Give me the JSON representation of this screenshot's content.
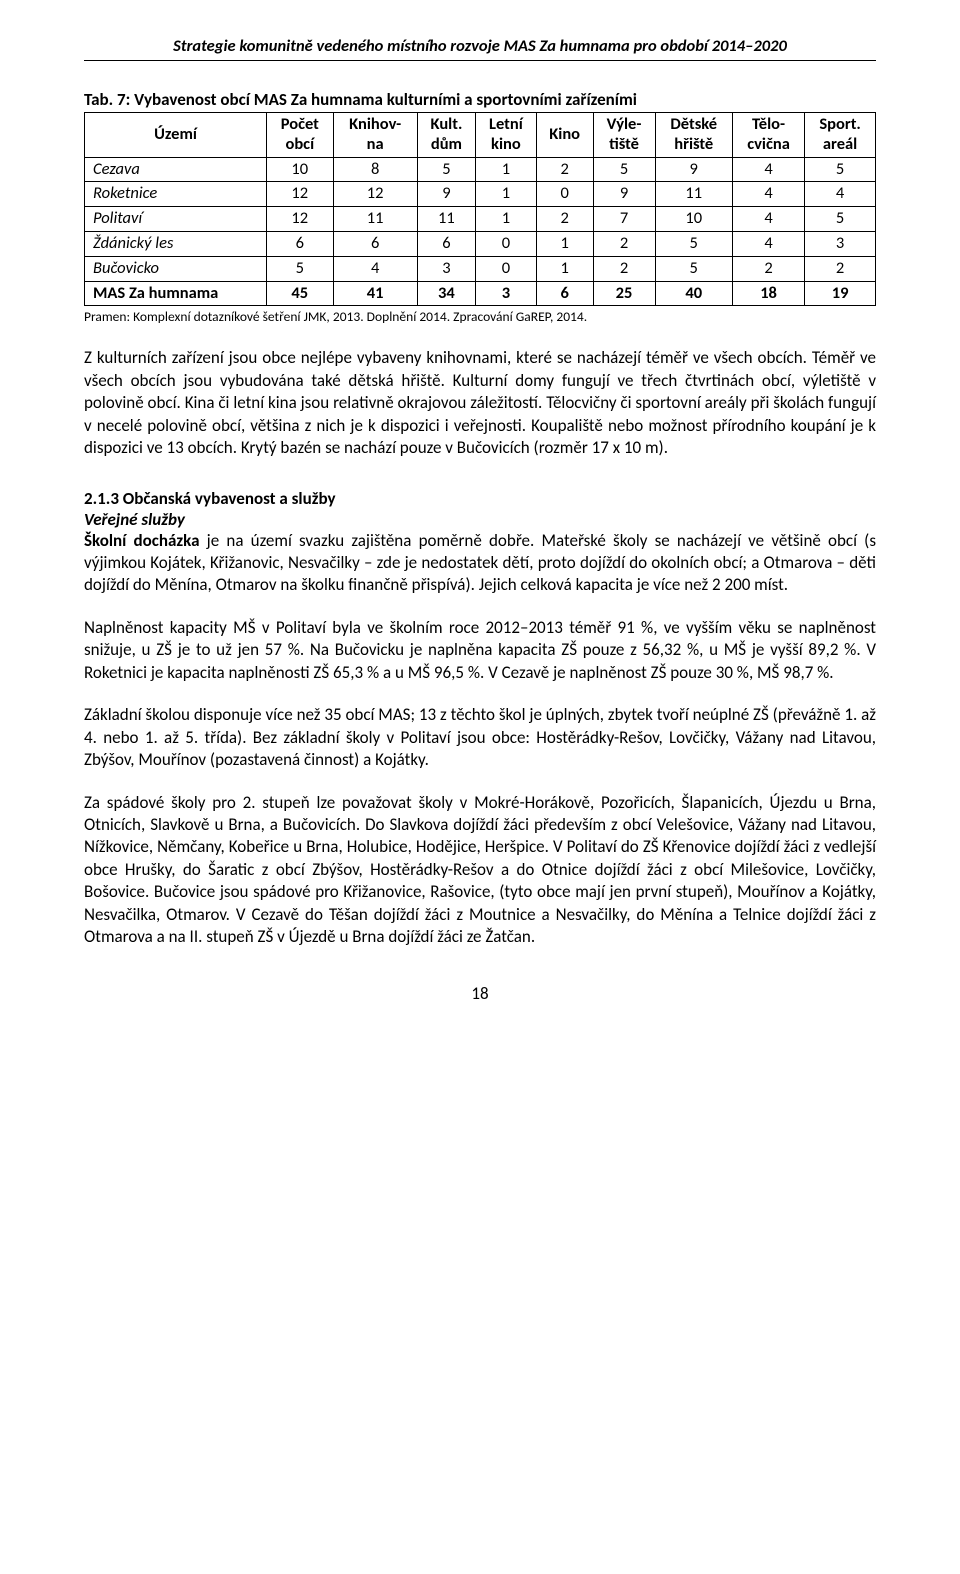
{
  "header": "Strategie komunitně vedeného místního rozvoje MAS Za humnama pro období 2014–2020",
  "table": {
    "caption": "Tab. 7: Vybavenost obcí MAS Za humnama kulturními a sportovními zařízeními",
    "columns": [
      "Území",
      "Počet obcí",
      "Knihov-na",
      "Kult. dům",
      "Letní kino",
      "Kino",
      "Výle-tiště",
      "Dětské hřiště",
      "Tělo-cvična",
      "Sport. areál"
    ],
    "col_html": [
      "Území",
      "Počet<br>obcí",
      "Knihov-<br>na",
      "Kult.<br>dům",
      "Letní<br>kino",
      "Kino",
      "Výle-<br>tiště",
      "Dětské<br>hřiště",
      "Tělo-<br>cvična",
      "Sport.<br>areál"
    ],
    "rows": [
      [
        "Cezava",
        "10",
        "8",
        "5",
        "1",
        "2",
        "5",
        "9",
        "4",
        "5"
      ],
      [
        "Roketnice",
        "12",
        "12",
        "9",
        "1",
        "0",
        "9",
        "11",
        "4",
        "4"
      ],
      [
        "Politaví",
        "12",
        "11",
        "11",
        "1",
        "2",
        "7",
        "10",
        "4",
        "5"
      ],
      [
        "Ždánický les",
        "6",
        "6",
        "6",
        "0",
        "1",
        "2",
        "5",
        "4",
        "3"
      ],
      [
        "Bučovicko",
        "5",
        "4",
        "3",
        "0",
        "1",
        "2",
        "5",
        "2",
        "2"
      ]
    ],
    "total": [
      "MAS Za humnama",
      "45",
      "41",
      "34",
      "3",
      "6",
      "25",
      "40",
      "18",
      "19"
    ],
    "source": "Pramen: Komplexní dotazníkové šetření JMK, 2013. Doplnění 2014. Zpracování GaREP, 2014."
  },
  "para1": "Z kulturních zařízení jsou obce nejlépe vybaveny knihovnami, které se nacházejí téměř ve všech obcích. Téměř ve všech obcích jsou vybudována také dětská hřiště. Kulturní domy fungují ve třech čtvrtinách obcí, výletiště v polovině obcí. Kina či letní kina jsou relativně okrajovou záležitostí. Tělocvičny či sportovní areály při školách fungují v necelé polovině obcí, většina z nich je k dispozici i veřejnosti. Koupaliště nebo možnost přírodního koupání je k dispozici ve 13 obcích. Krytý bazén se nachází pouze v Bučovicích (rozměr 17 x 10 m).",
  "section": {
    "num": "2.1.3 Občanská vybavenost a služby",
    "sub": "Veřejné služby"
  },
  "para2_lead": "Školní docházka",
  "para2_rest": " je na území svazku zajištěna poměrně dobře. Mateřské školy se nacházejí ve většině obcí (s výjimkou Kojátek, Křižanovic, Nesvačilky – zde je nedostatek dětí, proto dojíždí do okolních obcí; a Otmarova – děti dojíždí do Měnína, Otmarov na školku finančně přispívá). Jejich celková kapacita je více než 2 200 míst.",
  "para3": "Naplněnost kapacity MŠ v Politaví byla ve školním roce 2012–2013 téměř 91 %, ve vyšším věku se naplněnost snižuje, u ZŠ je to  už jen 57 %. Na Bučovicku je naplněna kapacita ZŠ pouze z 56,32 %, u MŠ je vyšší 89,2 %. V Roketnici je kapacita naplněnosti ZŠ 65,3 % a u MŠ 96,5 %. V Cezavě je naplněnost ZŠ pouze 30 %, MŠ 98,7 %.",
  "para4": "Základní školou disponuje více než 35 obcí MAS; 13 z těchto škol je úplných, zbytek tvoří neúplné ZŠ (převážně 1. až 4. nebo 1. až 5. třída). Bez základní školy v Politaví jsou obce: Hostěrádky-Rešov, Lovčičky, Vážany nad Litavou, Zbýšov, Mouřínov (pozastavená činnost) a Kojátky.",
  "para5": "Za spádové školy pro 2. stupeň lze považovat školy v Mokré-Horákově, Pozořicích, Šlapanicích, Újezdu u Brna, Otnicích, Slavkově u Brna,  a Bučovicích.  Do Slavkova dojíždí žáci především z obcí Velešovice, Vážany nad Litavou, Nížkovice, Němčany, Kobeřice u Brna, Holubice, Hodějice, Heršpice.  V Politaví do ZŠ Křenovice dojíždí žáci z vedlejší obce Hrušky, do Šaratic z obcí Zbýšov, Hostěrádky-Rešov a do Otnice dojíždí žáci z obcí Milešovice, Lovčičky, Bošovice. Bučovice jsou spádové pro Křižanovice, Rašovice,  (tyto obce mají jen první stupeň), Mouřínov a Kojátky, Nesvačilka, Otmarov.  V Cezavě do Těšan dojíždí žáci z Moutnice a Nesvačilky, do Měnína a Telnice dojíždí žáci z Otmarova a na II. stupeň ZŠ v Újezdě u Brna dojíždí žáci ze Žatčan.",
  "pagenum": "18"
}
